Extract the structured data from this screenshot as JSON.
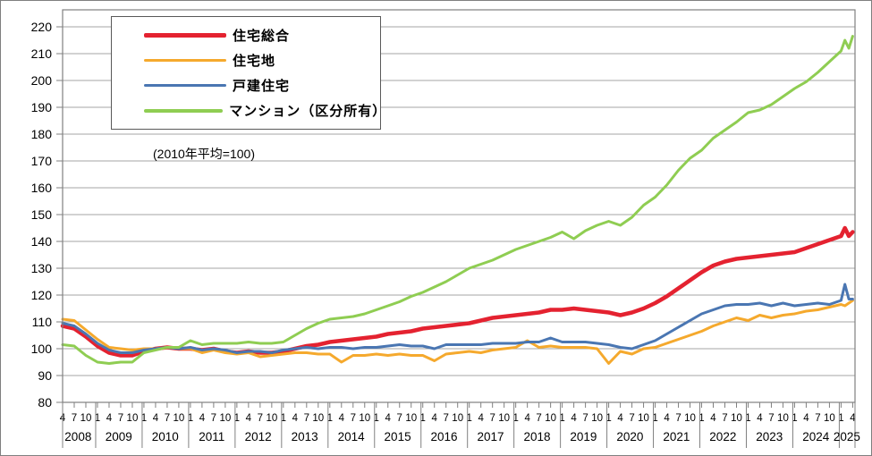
{
  "chart_data": {
    "type": "line",
    "title": "",
    "unit_note": "(2010年平均=100)",
    "legend_position": "top-left",
    "grid": "horizontal",
    "y_axis": {
      "min": 80,
      "max": 220,
      "step": 10,
      "tick_labels": [
        "80",
        "90",
        "100",
        "110",
        "120",
        "130",
        "140",
        "150",
        "160",
        "170",
        "180",
        "190",
        "200",
        "210",
        "220"
      ]
    },
    "x_axis": {
      "start": "2008-04",
      "end": "2025-04",
      "quarter_tick_labels": [
        "4",
        "7",
        "10",
        "1"
      ],
      "years": [
        "2008",
        "2009",
        "2010",
        "2011",
        "2012",
        "2013",
        "2014",
        "2015",
        "2016",
        "2017",
        "2018",
        "2019",
        "2020",
        "2021",
        "2022",
        "2023",
        "2024",
        "2025"
      ]
    },
    "x_months_since_2008_04": [
      0,
      3,
      6,
      9,
      12,
      15,
      18,
      21,
      24,
      27,
      30,
      33,
      36,
      39,
      42,
      45,
      48,
      51,
      54,
      57,
      60,
      63,
      66,
      69,
      72,
      75,
      78,
      81,
      84,
      87,
      90,
      93,
      96,
      99,
      102,
      105,
      108,
      111,
      114,
      117,
      120,
      123,
      126,
      129,
      132,
      135,
      138,
      141,
      144,
      147,
      150,
      153,
      156,
      159,
      162,
      165,
      168,
      171,
      174,
      177,
      180,
      183,
      186,
      189,
      192,
      195,
      198,
      201,
      202,
      203,
      204
    ],
    "series": [
      {
        "name": "住宅総合",
        "color": "#e42230",
        "stroke_width": 4.5,
        "values": [
          108.5,
          107.5,
          104.5,
          101,
          98.5,
          97.5,
          97.5,
          99,
          100,
          100.5,
          100,
          100,
          99.5,
          100,
          99,
          98.5,
          99,
          98.5,
          98.5,
          99,
          100,
          101,
          101.5,
          102.5,
          103,
          103.5,
          104,
          104.5,
          105.5,
          106,
          106.5,
          107.5,
          108,
          108.5,
          109,
          109.5,
          110.5,
          111.5,
          112,
          112.5,
          113,
          113.5,
          114.5,
          114.5,
          115,
          114.5,
          114,
          113.5,
          112.5,
          113.5,
          115,
          117,
          119.5,
          122.5,
          125.5,
          128.5,
          131,
          132.5,
          133.5,
          134,
          134.5,
          135,
          135.5,
          136,
          137.5,
          139,
          140.5,
          142,
          145,
          142,
          143.5
        ]
      },
      {
        "name": "住宅地",
        "color": "#f5a92d",
        "stroke_width": 3,
        "values": [
          111,
          110.5,
          107,
          103.5,
          100.5,
          100,
          99.5,
          100,
          100,
          100.5,
          100,
          100,
          98.5,
          99.5,
          98.5,
          98,
          98.5,
          97,
          97.5,
          98,
          98.5,
          98.5,
          98,
          98,
          95,
          97.5,
          97.5,
          98,
          97.5,
          98,
          97.5,
          97.5,
          95.5,
          98,
          98.5,
          99,
          98.5,
          99.5,
          100,
          100.5,
          103,
          100.5,
          101,
          100.5,
          100.5,
          100.5,
          100,
          94.5,
          99,
          98,
          100,
          100.5,
          102,
          103.5,
          105,
          106.5,
          108.5,
          110,
          111.5,
          110.5,
          112.5,
          111.5,
          112.5,
          113,
          114,
          114.5,
          115.5,
          116.5,
          116,
          117,
          118
        ]
      },
      {
        "name": "戸建住宅",
        "color": "#4a76b2",
        "stroke_width": 3,
        "values": [
          109.5,
          108.5,
          105.5,
          102,
          99.5,
          98.5,
          98.5,
          99.5,
          100,
          100.5,
          100,
          100.5,
          99.5,
          100,
          99.5,
          98.5,
          99,
          99,
          98.5,
          99.5,
          100,
          100.5,
          100,
          100.5,
          100.5,
          100,
          100.5,
          100.5,
          101,
          101.5,
          101,
          101,
          100,
          101.5,
          101.5,
          101.5,
          101.5,
          102,
          102,
          102,
          102.5,
          102.5,
          104,
          102.5,
          102.5,
          102.5,
          102,
          101.5,
          100.5,
          100,
          101.5,
          103,
          105.5,
          108,
          110.5,
          113,
          114.5,
          116,
          116.5,
          116.5,
          117,
          116,
          117,
          116,
          116.5,
          117,
          116.5,
          118,
          124,
          118.5,
          118.5
        ]
      },
      {
        "name": "マンション（区分所有）",
        "color": "#8fcd52",
        "stroke_width": 3,
        "values": [
          101.5,
          101,
          97.5,
          95,
          94.5,
          95,
          95,
          98.5,
          99.5,
          100.5,
          100.5,
          103,
          101.5,
          102,
          102,
          102,
          102.5,
          102,
          102,
          102.5,
          105,
          107.5,
          109.5,
          111,
          111.5,
          112,
          113,
          114.5,
          116,
          117.5,
          119.5,
          121,
          123,
          125,
          127.5,
          130,
          131.5,
          133,
          135,
          137,
          138.5,
          140,
          141.5,
          143.5,
          141,
          144,
          146,
          147.5,
          146,
          149,
          153.5,
          156.5,
          161,
          166.5,
          171,
          174,
          178.5,
          181.5,
          184.5,
          188,
          189,
          191,
          194,
          197,
          199.5,
          203,
          207,
          211,
          215,
          212,
          216.5
        ]
      }
    ],
    "colors": {
      "gridline": "#a6a6a6",
      "axis": "#808080",
      "text": "#000000"
    }
  }
}
